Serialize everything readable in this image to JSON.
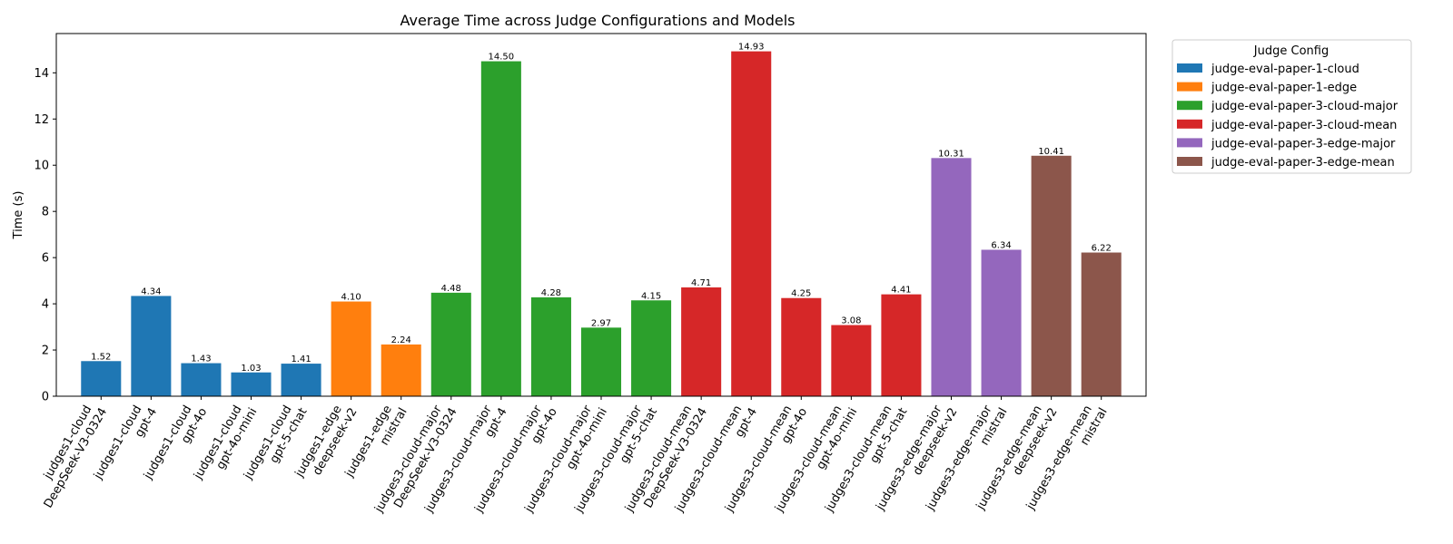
{
  "chart_data": {
    "type": "bar",
    "title": "Average Time across Judge Configurations and Models",
    "ylabel": "Time (s)",
    "xlabel": "",
    "ylim": [
      0,
      15.7
    ],
    "yticks": [
      0,
      2,
      4,
      6,
      8,
      10,
      12,
      14
    ],
    "grid": false,
    "legend": {
      "title": "Judge Config",
      "placement": "outside-top-right",
      "entries": [
        {
          "name": "judge-eval-paper-1-cloud",
          "color": "#1f77b4"
        },
        {
          "name": "judge-eval-paper-1-edge",
          "color": "#ff7f0e"
        },
        {
          "name": "judge-eval-paper-3-cloud-major",
          "color": "#2ca02c"
        },
        {
          "name": "judge-eval-paper-3-cloud-mean",
          "color": "#d62728"
        },
        {
          "name": "judge-eval-paper-3-edge-major",
          "color": "#9467bd"
        },
        {
          "name": "judge-eval-paper-3-edge-mean",
          "color": "#8c564b"
        }
      ]
    },
    "bars": [
      {
        "category": [
          "judges1-cloud",
          "DeepSeek-V3-0324"
        ],
        "value": 1.52,
        "label": "1.52",
        "series": 0
      },
      {
        "category": [
          "judges1-cloud",
          "gpt-4"
        ],
        "value": 4.34,
        "label": "4.34",
        "series": 0
      },
      {
        "category": [
          "judges1-cloud",
          "gpt-4o"
        ],
        "value": 1.43,
        "label": "1.43",
        "series": 0
      },
      {
        "category": [
          "judges1-cloud",
          "gpt-4o-mini"
        ],
        "value": 1.03,
        "label": "1.03",
        "series": 0
      },
      {
        "category": [
          "judges1-cloud",
          "gpt-5-chat"
        ],
        "value": 1.41,
        "label": "1.41",
        "series": 0
      },
      {
        "category": [
          "judges1-edge",
          "deepseek-v2"
        ],
        "value": 4.1,
        "label": "4.10",
        "series": 1
      },
      {
        "category": [
          "judges1-edge",
          "mistral"
        ],
        "value": 2.24,
        "label": "2.24",
        "series": 1
      },
      {
        "category": [
          "judges3-cloud-major",
          "DeepSeek-V3-0324"
        ],
        "value": 4.48,
        "label": "4.48",
        "series": 2
      },
      {
        "category": [
          "judges3-cloud-major",
          "gpt-4"
        ],
        "value": 14.5,
        "label": "14.50",
        "series": 2
      },
      {
        "category": [
          "judges3-cloud-major",
          "gpt-4o"
        ],
        "value": 4.28,
        "label": "4.28",
        "series": 2
      },
      {
        "category": [
          "judges3-cloud-major",
          "gpt-4o-mini"
        ],
        "value": 2.97,
        "label": "2.97",
        "series": 2
      },
      {
        "category": [
          "judges3-cloud-major",
          "gpt-5-chat"
        ],
        "value": 4.15,
        "label": "4.15",
        "series": 2
      },
      {
        "category": [
          "judges3-cloud-mean",
          "DeepSeek-V3-0324"
        ],
        "value": 4.71,
        "label": "4.71",
        "series": 3
      },
      {
        "category": [
          "judges3-cloud-mean",
          "gpt-4"
        ],
        "value": 14.93,
        "label": "14.93",
        "series": 3
      },
      {
        "category": [
          "judges3-cloud-mean",
          "gpt-4o"
        ],
        "value": 4.25,
        "label": "4.25",
        "series": 3
      },
      {
        "category": [
          "judges3-cloud-mean",
          "gpt-4o-mini"
        ],
        "value": 3.08,
        "label": "3.08",
        "series": 3
      },
      {
        "category": [
          "judges3-cloud-mean",
          "gpt-5-chat"
        ],
        "value": 4.41,
        "label": "4.41",
        "series": 3
      },
      {
        "category": [
          "judges3-edge-major",
          "deepseek-v2"
        ],
        "value": 10.31,
        "label": "10.31",
        "series": 4
      },
      {
        "category": [
          "judges3-edge-major",
          "mistral"
        ],
        "value": 6.34,
        "label": "6.34",
        "series": 4
      },
      {
        "category": [
          "judges3-edge-mean",
          "deepseek-v2"
        ],
        "value": 10.41,
        "label": "10.41",
        "series": 5
      },
      {
        "category": [
          "judges3-edge-mean",
          "mistral"
        ],
        "value": 6.22,
        "label": "6.22",
        "series": 5
      }
    ]
  }
}
